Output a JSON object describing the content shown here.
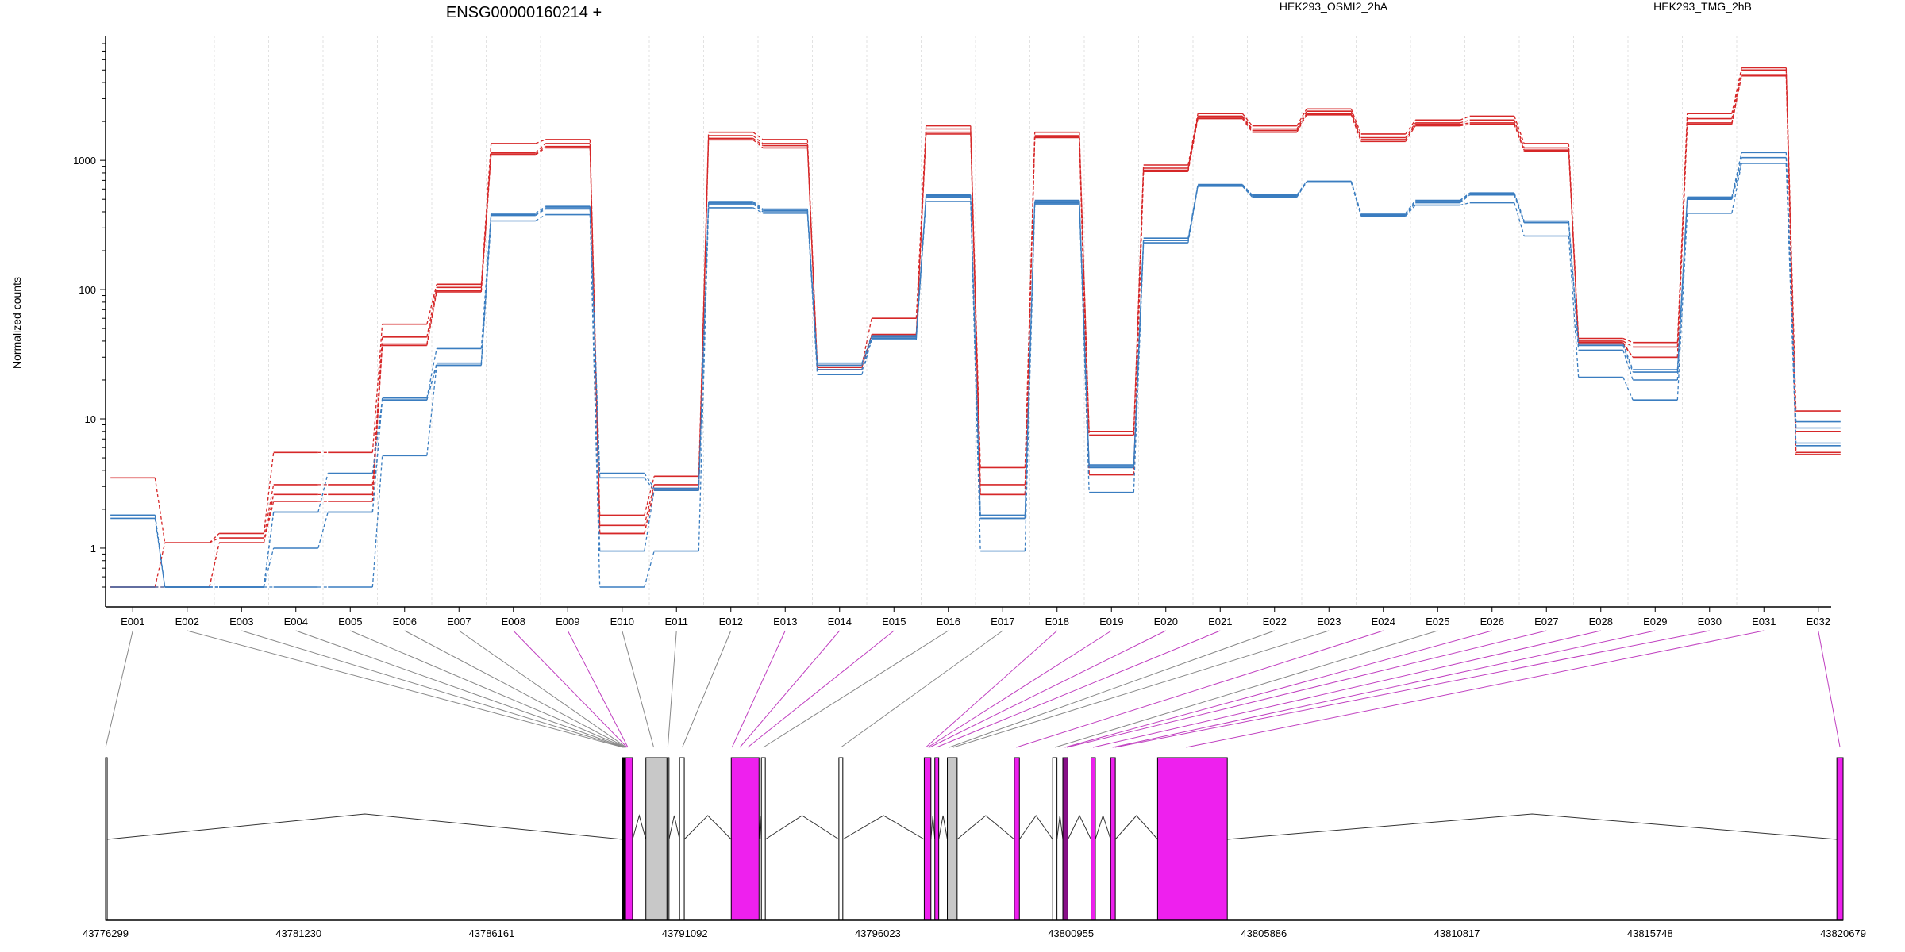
{
  "chart_data": {
    "type": "line",
    "title": "ENSG00000160214 +",
    "ylabel": "Normalized counts",
    "yscale": "log",
    "ylim": [
      0.5,
      8000
    ],
    "yticks": [
      "1",
      "10",
      "100",
      "1000"
    ],
    "legend": [
      {
        "name": "HEK293_OSMI2_2hA",
        "color": "#d62728"
      },
      {
        "name": "HEK293_TMG_2hB",
        "color": "#3a7dc0"
      }
    ],
    "categories": [
      "E001",
      "E002",
      "E003",
      "E004",
      "E005",
      "E006",
      "E007",
      "E008",
      "E009",
      "E010",
      "E011",
      "E012",
      "E013",
      "E014",
      "E015",
      "E016",
      "E017",
      "E018",
      "E019",
      "E020",
      "E021",
      "E022",
      "E023",
      "E024",
      "E025",
      "E026",
      "E027",
      "E028",
      "E029",
      "E030",
      "E031",
      "E032"
    ],
    "series": [
      {
        "group": "HEK293_OSMI2_2hA",
        "color": "#d62728",
        "values": [
          3.5,
          1.1,
          1.3,
          5.5,
          5.5,
          54,
          110,
          1350,
          1450,
          1.8,
          3.6,
          1650,
          1450,
          26,
          60,
          1850,
          4.2,
          1650,
          8,
          920,
          2300,
          1850,
          2500,
          1600,
          2050,
          2200,
          1350,
          42,
          39,
          2300,
          5200,
          11.5
        ]
      },
      {
        "group": "HEK293_OSMI2_2hA",
        "color": "#d62728",
        "values": [
          0.5,
          1.1,
          1.2,
          3.1,
          3.1,
          43,
          104,
          1150,
          1350,
          1.5,
          3.1,
          1550,
          1350,
          25,
          45,
          1750,
          3.1,
          1550,
          7.5,
          870,
          2200,
          1750,
          2400,
          1500,
          1950,
          2050,
          1250,
          40,
          36,
          2100,
          5000,
          8
        ]
      },
      {
        "group": "HEK293_OSMI2_2hA",
        "color": "#d62728",
        "values": [
          0.5,
          0.5,
          1.1,
          2.6,
          2.6,
          38,
          98,
          1120,
          1280,
          1.3,
          2.9,
          1480,
          1300,
          24,
          44,
          1650,
          2.6,
          1520,
          3.7,
          840,
          2150,
          1700,
          2300,
          1450,
          1900,
          1950,
          1200,
          39,
          30,
          1950,
          4600,
          5.5
        ]
      },
      {
        "group": "HEK293_OSMI2_2hA",
        "color": "#d62728",
        "values": [
          0.5,
          0.5,
          1.1,
          2.3,
          2.3,
          37,
          96,
          1100,
          1250,
          1.3,
          2.8,
          1440,
          1250,
          24,
          43,
          1600,
          2.6,
          1500,
          3.7,
          820,
          2100,
          1650,
          2250,
          1400,
          1850,
          1900,
          1180,
          38,
          30,
          1900,
          4500,
          5.3
        ]
      },
      {
        "group": "HEK293_TMG_2hB",
        "color": "#3a7dc0",
        "values": [
          1.8,
          0.5,
          0.5,
          1.9,
          1.9,
          14.5,
          35,
          390,
          440,
          3.8,
          2.9,
          480,
          420,
          27,
          44,
          540,
          1.8,
          490,
          4.4,
          250,
          650,
          540,
          690,
          390,
          490,
          560,
          340,
          38,
          24,
          520,
          1150,
          9.5
        ]
      },
      {
        "group": "HEK293_TMG_2hB",
        "color": "#3a7dc0",
        "values": [
          1.8,
          0.5,
          0.5,
          1.9,
          3.8,
          14,
          27,
          380,
          430,
          3.5,
          2.8,
          470,
          410,
          26,
          43,
          530,
          1.7,
          480,
          4.2,
          240,
          640,
          530,
          680,
          380,
          480,
          550,
          330,
          37,
          23,
          510,
          1050,
          8.5
        ]
      },
      {
        "group": "HEK293_TMG_2hB",
        "color": "#3a7dc0",
        "values": [
          1.7,
          0.5,
          0.5,
          1.0,
          1.9,
          14,
          26,
          375,
          420,
          0.95,
          2.8,
          460,
          400,
          24,
          42,
          520,
          1.7,
          470,
          4.3,
          240,
          640,
          520,
          680,
          375,
          470,
          540,
          330,
          34,
          20,
          500,
          950,
          6.5
        ]
      },
      {
        "group": "HEK293_TMG_2hB",
        "color": "#3a7dc0",
        "values": [
          0.5,
          0.5,
          0.5,
          0.5,
          0.5,
          5.2,
          26,
          340,
          380,
          0.5,
          0.95,
          430,
          390,
          22,
          41,
          480,
          0.95,
          460,
          2.7,
          230,
          630,
          520,
          680,
          370,
          450,
          470,
          260,
          21,
          14,
          390,
          950,
          6.2
        ]
      }
    ],
    "gene_model": {
      "coordinate_ticks": [
        "43776299",
        "43781230",
        "43786161",
        "43791092",
        "43796023",
        "43800955",
        "43805886",
        "43810817",
        "43815748",
        "43820679"
      ],
      "coordinate_range": [
        43776299,
        43820679
      ],
      "exons": [
        {
          "start": 43776299,
          "end": 43776340,
          "color": "#ffffff"
        },
        {
          "start": 43789505,
          "end": 43789580,
          "color": "#000000"
        },
        {
          "start": 43789580,
          "end": 43789760,
          "color": "#ee20ee"
        },
        {
          "start": 43790100,
          "end": 43790640,
          "color": "#c8c8c8"
        },
        {
          "start": 43790640,
          "end": 43790690,
          "color": "#ffffff"
        },
        {
          "start": 43790960,
          "end": 43791080,
          "color": "#ffffff"
        },
        {
          "start": 43792280,
          "end": 43792990,
          "color": "#ee20ee"
        },
        {
          "start": 43793050,
          "end": 43793150,
          "color": "#ffffff"
        },
        {
          "start": 43795030,
          "end": 43795130,
          "color": "#ffffff"
        },
        {
          "start": 43797210,
          "end": 43797380,
          "color": "#ee20ee"
        },
        {
          "start": 43797480,
          "end": 43797580,
          "color": "#ee20ee"
        },
        {
          "start": 43797800,
          "end": 43798050,
          "color": "#c8c8c8"
        },
        {
          "start": 43799510,
          "end": 43799640,
          "color": "#ee20ee"
        },
        {
          "start": 43800490,
          "end": 43800600,
          "color": "#ffffff"
        },
        {
          "start": 43800750,
          "end": 43800880,
          "color": "#881088"
        },
        {
          "start": 43801470,
          "end": 43801580,
          "color": "#ee20ee"
        },
        {
          "start": 43801970,
          "end": 43802090,
          "color": "#ee20ee"
        },
        {
          "start": 43803170,
          "end": 43804950,
          "color": "#ee20ee"
        },
        {
          "start": 43820520,
          "end": 43820679,
          "color": "#ee20ee"
        }
      ],
      "mappings": [
        {
          "label": "E001",
          "pos": 43776300,
          "color": "#888888"
        },
        {
          "label": "E002",
          "pos": 43789520,
          "color": "#888888"
        },
        {
          "label": "E003",
          "pos": 43789540,
          "color": "#888888"
        },
        {
          "label": "E004",
          "pos": 43789555,
          "color": "#888888"
        },
        {
          "label": "E005",
          "pos": 43789570,
          "color": "#888888"
        },
        {
          "label": "E006",
          "pos": 43789585,
          "color": "#888888"
        },
        {
          "label": "E007",
          "pos": 43789600,
          "color": "#888888"
        },
        {
          "label": "E008",
          "pos": 43789620,
          "color": "#c040c0"
        },
        {
          "label": "E009",
          "pos": 43789640,
          "color": "#c040c0"
        },
        {
          "label": "E010",
          "pos": 43790300,
          "color": "#888888"
        },
        {
          "label": "E011",
          "pos": 43790660,
          "color": "#888888"
        },
        {
          "label": "E012",
          "pos": 43791030,
          "color": "#888888"
        },
        {
          "label": "E013",
          "pos": 43792300,
          "color": "#c040c0"
        },
        {
          "label": "E014",
          "pos": 43792500,
          "color": "#c040c0"
        },
        {
          "label": "E015",
          "pos": 43792700,
          "color": "#c040c0"
        },
        {
          "label": "E016",
          "pos": 43793100,
          "color": "#888888"
        },
        {
          "label": "E017",
          "pos": 43795080,
          "color": "#888888"
        },
        {
          "label": "E018",
          "pos": 43797250,
          "color": "#c040c0"
        },
        {
          "label": "E019",
          "pos": 43797300,
          "color": "#c040c0"
        },
        {
          "label": "E020",
          "pos": 43797350,
          "color": "#c040c0"
        },
        {
          "label": "E021",
          "pos": 43797520,
          "color": "#c040c0"
        },
        {
          "label": "E022",
          "pos": 43797850,
          "color": "#888888"
        },
        {
          "label": "E023",
          "pos": 43797950,
          "color": "#888888"
        },
        {
          "label": "E024",
          "pos": 43799560,
          "color": "#c040c0"
        },
        {
          "label": "E025",
          "pos": 43800550,
          "color": "#888888"
        },
        {
          "label": "E026",
          "pos": 43800800,
          "color": "#c040c0"
        },
        {
          "label": "E027",
          "pos": 43800850,
          "color": "#c040c0"
        },
        {
          "label": "E028",
          "pos": 43801520,
          "color": "#c040c0"
        },
        {
          "label": "E029",
          "pos": 43802020,
          "color": "#c040c0"
        },
        {
          "label": "E030",
          "pos": 43802080,
          "color": "#c040c0"
        },
        {
          "label": "E031",
          "pos": 43803900,
          "color": "#c040c0"
        },
        {
          "label": "E032",
          "pos": 43820600,
          "color": "#c040c0"
        }
      ]
    }
  }
}
